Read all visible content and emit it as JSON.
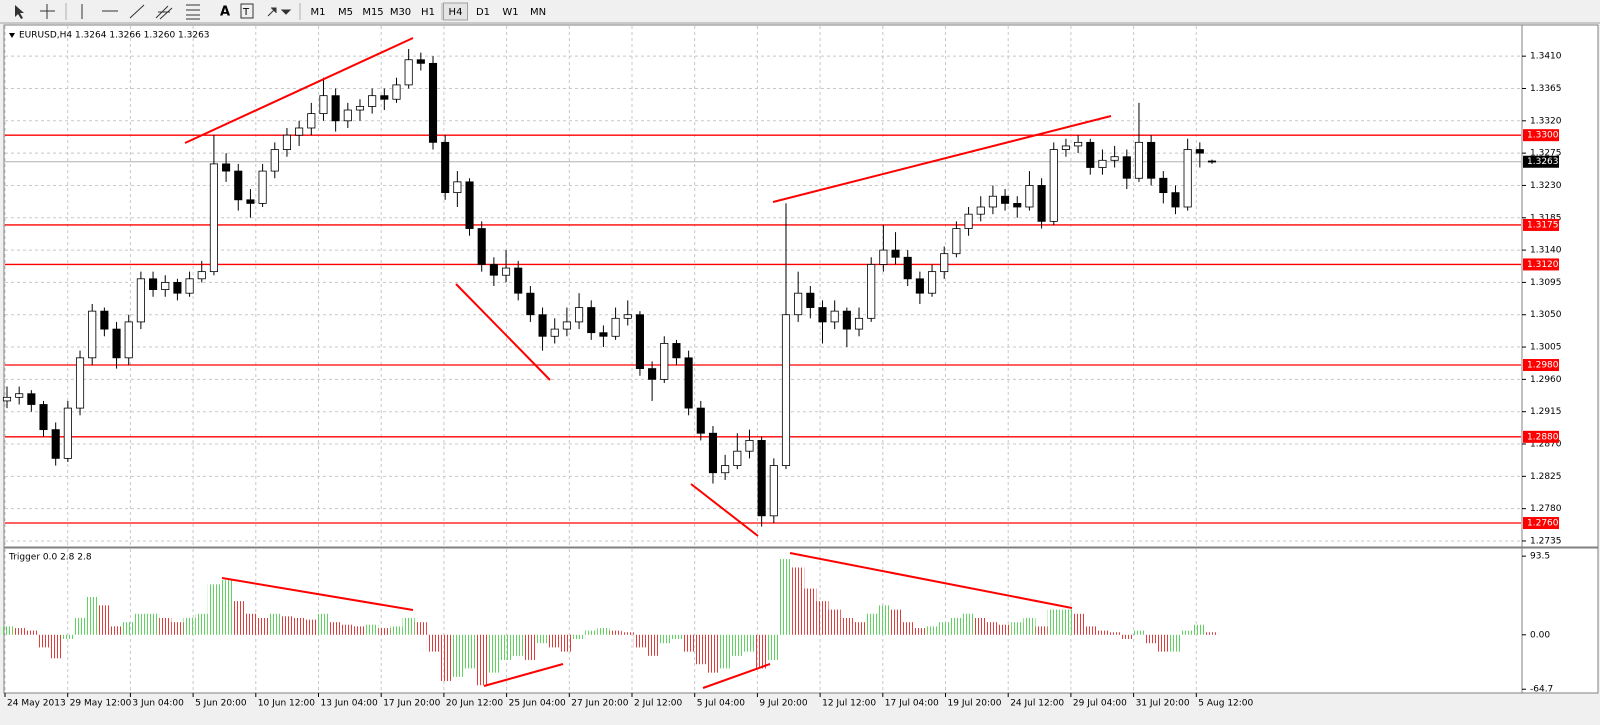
{
  "toolbar": {
    "timeframes": [
      "M1",
      "M5",
      "M15",
      "M30",
      "H1",
      "H4",
      "D1",
      "W1",
      "MN"
    ],
    "active_timeframe": 5
  },
  "time_axis": [
    "24 May 2013",
    "29 May 12:00",
    "3 Jun 04:00",
    "5 Jun 20:00",
    "10 Jun 12:00",
    "13 Jun 04:00",
    "17 Jun 20:00",
    "20 Jun 12:00",
    "25 Jun 04:00",
    "27 Jun 20:00",
    "2 Jul 12:00",
    "5 Jul 04:00",
    "9 Jul 20:00",
    "12 Jul 12:00",
    "17 Jul 04:00",
    "19 Jul 20:00",
    "24 Jul 12:00",
    "29 Jul 04:00",
    "31 Jul 20:00",
    "5 Aug 12:00"
  ],
  "chart_data": [
    {
      "type": "candlestick",
      "title": "EURUSD,H4  1.3264 1.3266 1.3260 1.3263",
      "up_color": "#ffffff",
      "down_color": "#000000",
      "grid": true,
      "ylim": [
        1.2728,
        1.3452
      ],
      "yticks": [
        {
          "value": 1.341,
          "label": "1.3410"
        },
        1.3365,
        {
          "value": 1.332,
          "label": "1.3320"
        },
        1.3275,
        {
          "value": 1.323,
          "label": "1.3230"
        },
        1.3185,
        {
          "value": 1.314,
          "label": "1.3140"
        },
        1.3095,
        {
          "value": 1.305,
          "label": "1.3050"
        },
        1.3005,
        {
          "value": 1.296,
          "label": "1.2960"
        },
        1.2915,
        {
          "value": 1.287,
          "label": "1.2870"
        },
        1.2825,
        {
          "value": 1.278,
          "label": "1.2780"
        },
        1.2735
      ],
      "levels": [
        {
          "value": 1.33,
          "label": "1.3300"
        },
        1.3175,
        {
          "value": 1.312,
          "label": "1.3120"
        },
        {
          "value": 1.298,
          "label": "1.2980"
        },
        {
          "value": 1.288,
          "label": "1.2880"
        },
        {
          "value": 1.276,
          "label": "1.2760"
        }
      ],
      "level_color": "#ff0000",
      "last": 1.3263,
      "ohlc": [
        [
          1.293,
          1.295,
          1.292,
          1.2935
        ],
        [
          1.2935,
          1.295,
          1.2925,
          1.294
        ],
        [
          1.294,
          1.2945,
          1.2915,
          1.2925
        ],
        [
          1.2925,
          1.293,
          1.288,
          1.289
        ],
        [
          1.289,
          1.29,
          1.284,
          1.285
        ],
        [
          1.285,
          1.293,
          1.2845,
          1.292
        ],
        [
          1.292,
          1.3,
          1.291,
          1.299
        ],
        [
          1.299,
          1.3065,
          1.298,
          1.3055
        ],
        [
          1.3055,
          1.306,
          1.302,
          1.303
        ],
        [
          1.303,
          1.304,
          1.2975,
          1.299
        ],
        [
          1.299,
          1.305,
          1.298,
          1.304
        ],
        [
          1.304,
          1.311,
          1.303,
          1.31
        ],
        [
          1.31,
          1.311,
          1.3075,
          1.3085
        ],
        [
          1.3085,
          1.3105,
          1.3075,
          1.3095
        ],
        [
          1.3095,
          1.31,
          1.307,
          1.308
        ],
        [
          1.308,
          1.311,
          1.3075,
          1.31
        ],
        [
          1.31,
          1.3125,
          1.3095,
          1.311
        ],
        [
          1.311,
          1.33,
          1.3105,
          1.326
        ],
        [
          1.326,
          1.3275,
          1.3235,
          1.325
        ],
        [
          1.325,
          1.326,
          1.3195,
          1.321
        ],
        [
          1.321,
          1.3225,
          1.3185,
          1.3205
        ],
        [
          1.3205,
          1.326,
          1.32,
          1.325
        ],
        [
          1.325,
          1.329,
          1.324,
          1.328
        ],
        [
          1.328,
          1.331,
          1.327,
          1.33
        ],
        [
          1.33,
          1.332,
          1.3285,
          1.331
        ],
        [
          1.331,
          1.3345,
          1.33,
          1.333
        ],
        [
          1.333,
          1.338,
          1.332,
          1.3355
        ],
        [
          1.3355,
          1.3365,
          1.3305,
          1.332
        ],
        [
          1.332,
          1.3345,
          1.331,
          1.3335
        ],
        [
          1.3335,
          1.335,
          1.332,
          1.334
        ],
        [
          1.334,
          1.3365,
          1.333,
          1.3355
        ],
        [
          1.3355,
          1.3365,
          1.3335,
          1.335
        ],
        [
          1.335,
          1.338,
          1.3345,
          1.337
        ],
        [
          1.337,
          1.342,
          1.3365,
          1.3405
        ],
        [
          1.3405,
          1.3415,
          1.339,
          1.34
        ],
        [
          1.34,
          1.341,
          1.328,
          1.329
        ],
        [
          1.329,
          1.33,
          1.321,
          1.322
        ],
        [
          1.322,
          1.325,
          1.32,
          1.3235
        ],
        [
          1.3235,
          1.324,
          1.316,
          1.317
        ],
        [
          1.317,
          1.318,
          1.311,
          1.312
        ],
        [
          1.312,
          1.313,
          1.309,
          1.3105
        ],
        [
          1.3105,
          1.314,
          1.3095,
          1.3115
        ],
        [
          1.3115,
          1.3125,
          1.307,
          1.308
        ],
        [
          1.308,
          1.309,
          1.304,
          1.305
        ],
        [
          1.305,
          1.306,
          1.3,
          1.302
        ],
        [
          1.302,
          1.3045,
          1.301,
          1.303
        ],
        [
          1.303,
          1.306,
          1.302,
          1.304
        ],
        [
          1.304,
          1.308,
          1.303,
          1.306
        ],
        [
          1.306,
          1.307,
          1.3015,
          1.3025
        ],
        [
          1.3025,
          1.3035,
          1.3005,
          1.302
        ],
        [
          1.302,
          1.306,
          1.3015,
          1.3045
        ],
        [
          1.3045,
          1.307,
          1.3035,
          1.305
        ],
        [
          1.305,
          1.3055,
          1.2965,
          1.2975
        ],
        [
          1.2975,
          1.2985,
          1.293,
          1.296
        ],
        [
          1.296,
          1.302,
          1.2955,
          1.301
        ],
        [
          1.301,
          1.3015,
          1.298,
          1.299
        ],
        [
          1.299,
          1.3,
          1.291,
          1.292
        ],
        [
          1.292,
          1.293,
          1.2875,
          1.2885
        ],
        [
          1.2885,
          1.2895,
          1.2815,
          1.283
        ],
        [
          1.283,
          1.2855,
          1.282,
          1.284
        ],
        [
          1.284,
          1.2885,
          1.2835,
          1.286
        ],
        [
          1.286,
          1.289,
          1.285,
          1.2875
        ],
        [
          1.2875,
          1.288,
          1.2755,
          1.277
        ],
        [
          1.277,
          1.285,
          1.276,
          1.284
        ],
        [
          1.284,
          1.3205,
          1.2835,
          1.305
        ],
        [
          1.305,
          1.311,
          1.304,
          1.308
        ],
        [
          1.308,
          1.309,
          1.3045,
          1.306
        ],
        [
          1.306,
          1.307,
          1.301,
          1.304
        ],
        [
          1.304,
          1.307,
          1.303,
          1.3055
        ],
        [
          1.3055,
          1.306,
          1.3005,
          1.303
        ],
        [
          1.303,
          1.306,
          1.302,
          1.3045
        ],
        [
          1.3045,
          1.313,
          1.304,
          1.312
        ],
        [
          1.312,
          1.3175,
          1.311,
          1.314
        ],
        [
          1.314,
          1.3165,
          1.312,
          1.313
        ],
        [
          1.313,
          1.314,
          1.309,
          1.31
        ],
        [
          1.31,
          1.311,
          1.3065,
          1.308
        ],
        [
          1.308,
          1.312,
          1.3075,
          1.311
        ],
        [
          1.311,
          1.3145,
          1.31,
          1.3135
        ],
        [
          1.3135,
          1.318,
          1.313,
          1.317
        ],
        [
          1.317,
          1.32,
          1.316,
          1.319
        ],
        [
          1.319,
          1.3215,
          1.318,
          1.32
        ],
        [
          1.32,
          1.323,
          1.319,
          1.3215
        ],
        [
          1.3215,
          1.3225,
          1.3195,
          1.3205
        ],
        [
          1.3205,
          1.3215,
          1.3185,
          1.32
        ],
        [
          1.32,
          1.325,
          1.3195,
          1.323
        ],
        [
          1.323,
          1.324,
          1.317,
          1.318
        ],
        [
          1.318,
          1.329,
          1.3175,
          1.328
        ],
        [
          1.328,
          1.3295,
          1.327,
          1.3285
        ],
        [
          1.3285,
          1.33,
          1.3275,
          1.329
        ],
        [
          1.329,
          1.3295,
          1.3245,
          1.3255
        ],
        [
          1.3255,
          1.328,
          1.3245,
          1.3265
        ],
        [
          1.3265,
          1.3285,
          1.3255,
          1.327
        ],
        [
          1.327,
          1.328,
          1.3225,
          1.324
        ],
        [
          1.324,
          1.3345,
          1.3235,
          1.329
        ],
        [
          1.329,
          1.33,
          1.323,
          1.324
        ],
        [
          1.324,
          1.325,
          1.3205,
          1.322
        ],
        [
          1.322,
          1.323,
          1.319,
          1.32
        ],
        [
          1.32,
          1.3295,
          1.3195,
          1.328
        ],
        [
          1.328,
          1.329,
          1.3255,
          1.3275
        ],
        [
          1.3264,
          1.3266,
          1.326,
          1.3263
        ]
      ]
    },
    {
      "type": "histogram",
      "title": "Trigger 0.0 2.8 2.8",
      "up_color": "#5fd35f",
      "down_color": "#e03c3c",
      "ylim": [
        -68,
        102
      ],
      "yticks": [
        93.5,
        {
          "value": 0,
          "label": "0.00"
        },
        -64.7
      ],
      "values": [
        10,
        8,
        5,
        -15,
        -28,
        -5,
        20,
        45,
        35,
        10,
        15,
        25,
        25,
        20,
        15,
        20,
        25,
        60,
        65,
        40,
        25,
        20,
        25,
        22,
        20,
        18,
        25,
        15,
        12,
        10,
        12,
        8,
        10,
        20,
        15,
        -20,
        -55,
        -50,
        -40,
        -60,
        -45,
        -30,
        -25,
        -30,
        -10,
        -15,
        -20,
        -5,
        5,
        8,
        5,
        3,
        -15,
        -25,
        -10,
        -5,
        -20,
        -35,
        -45,
        -40,
        -25,
        -20,
        -40,
        -30,
        90,
        80,
        55,
        40,
        30,
        20,
        15,
        25,
        35,
        30,
        15,
        8,
        10,
        15,
        20,
        25,
        20,
        15,
        12,
        15,
        20,
        10,
        30,
        30,
        25,
        10,
        5,
        3,
        -5,
        5,
        -10,
        -20,
        -20,
        5,
        12,
        3
      ]
    }
  ]
}
